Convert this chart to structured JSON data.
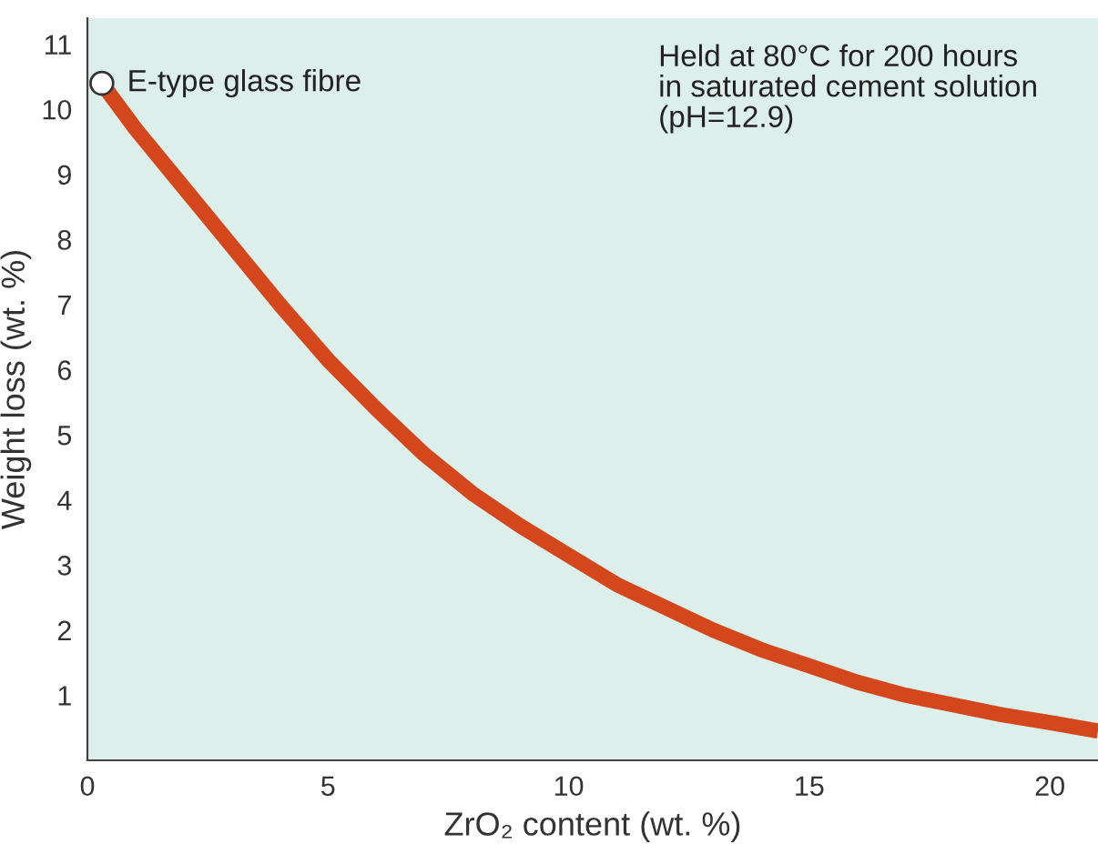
{
  "chart_data": {
    "type": "line",
    "xlabel": "ZrO₂ content (wt. %)",
    "ylabel": "Weight loss (wt. %)",
    "xlim": [
      0,
      21
    ],
    "ylim": [
      0,
      11.4
    ],
    "xticks": [
      0,
      5,
      10,
      15,
      20
    ],
    "yticks": [
      1,
      2,
      3,
      4,
      5,
      6,
      7,
      8,
      9,
      10,
      11
    ],
    "grid": false,
    "legend": false,
    "line_style": "solid",
    "series": [
      {
        "color": "#d4471c",
        "x": [
          0.3,
          1,
          2,
          3,
          4,
          5,
          6,
          7,
          8,
          9,
          10,
          11,
          12,
          13,
          14,
          15,
          16,
          17,
          18,
          19,
          20,
          21
        ],
        "values": [
          10.4,
          9.7,
          8.8,
          7.9,
          7.0,
          6.15,
          5.4,
          4.7,
          4.1,
          3.6,
          3.15,
          2.7,
          2.35,
          2.0,
          1.7,
          1.45,
          1.2,
          1.0,
          0.85,
          0.7,
          0.58,
          0.45
        ]
      },
      {
        "type": "scatter",
        "color": "#ffffff",
        "x": [
          0.3
        ],
        "values": [
          10.4
        ]
      }
    ],
    "annotations": [
      {
        "text": "E-type glass fibre",
        "x": 0.3,
        "y": 10.4
      },
      "Held at 80°C for 200 hours\nin saturated cement solution\n(pH=12.9)"
    ]
  }
}
